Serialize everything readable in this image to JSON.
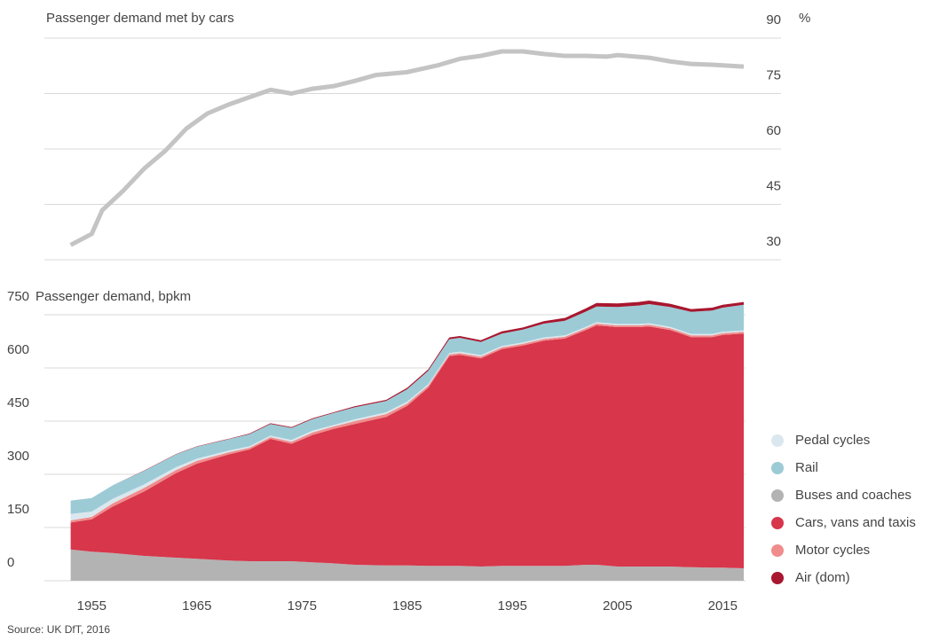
{
  "chart_data": [
    {
      "type": "line",
      "title": "Passenger demand met by cars",
      "y_unit": "%",
      "x": [
        1953,
        1955,
        1956,
        1958,
        1960,
        1962,
        1964,
        1966,
        1968,
        1970,
        1972,
        1974,
        1976,
        1978,
        1980,
        1982,
        1985,
        1988,
        1990,
        1992,
        1994,
        1996,
        1998,
        2000,
        2002,
        2004,
        2005,
        2008,
        2010,
        2012,
        2014,
        2017
      ],
      "series": [
        {
          "color": "#c4c4c4",
          "values": [
            34,
            37,
            43.4,
            48.7,
            54.7,
            59.5,
            65.5,
            69.6,
            72,
            74,
            76,
            75,
            76.3,
            77,
            78.4,
            80,
            80.8,
            82.7,
            84.4,
            85.2,
            86.4,
            86.4,
            85.7,
            85.2,
            85.2,
            85,
            85.4,
            84.7,
            83.7,
            83,
            82.8,
            82.3
          ]
        }
      ],
      "xlim": [
        1950.5,
        2017
      ],
      "ylim": [
        30,
        90
      ],
      "yticks": [
        30,
        45,
        60,
        75,
        90
      ],
      "grid": true
    },
    {
      "type": "stacked_area",
      "title": "Passenger demand, bpkm",
      "source": "Source: UK DfT, 2016",
      "x": [
        1953,
        1955,
        1957,
        1960,
        1963,
        1965,
        1968,
        1970,
        1972,
        1974,
        1976,
        1978,
        1980,
        1983,
        1985,
        1987,
        1989,
        1990,
        1992,
        1994,
        1996,
        1998,
        2000,
        2002,
        2003,
        2005,
        2007,
        2008,
        2010,
        2012,
        2014,
        2015,
        2017
      ],
      "series": [
        {
          "name": "Buses and coaches",
          "color": "#b3b3b3",
          "values": [
            88,
            82,
            78,
            70,
            65,
            62,
            57,
            55,
            55,
            55,
            52,
            49,
            45,
            43,
            43,
            42,
            42,
            42,
            40,
            42,
            42,
            42,
            42,
            45,
            45,
            40,
            40,
            40,
            40,
            38,
            37,
            37,
            35
          ]
        },
        {
          "name": "Cars, vans and taxis",
          "color": "#d7364b",
          "values": [
            76,
            91,
            131,
            182,
            238,
            268,
            299,
            315,
            345,
            331,
            359,
            379,
            397,
            419,
            450,
            502,
            591,
            595,
            587,
            611,
            621,
            635,
            641,
            662,
            675,
            675,
            675,
            677,
            667,
            649,
            650,
            656,
            662
          ]
        },
        {
          "name": "Motor cycles",
          "color": "#f08c8c",
          "values": [
            6,
            7,
            9,
            10,
            9,
            8,
            6,
            5,
            5,
            6,
            7,
            7,
            8,
            8,
            7,
            6,
            5,
            5,
            5,
            5,
            5,
            5,
            5,
            5,
            5,
            5,
            5,
            5,
            5,
            5,
            5,
            5,
            5
          ]
        },
        {
          "name": "Pedal cycles",
          "color": "#dbe7ee",
          "values": [
            18,
            15,
            13,
            10,
            8,
            6,
            5,
            4,
            4,
            5,
            5,
            4,
            5,
            5,
            5,
            4,
            4,
            4,
            4,
            4,
            4,
            4,
            4,
            4,
            4,
            4,
            4,
            4,
            4,
            4,
            4,
            4,
            4
          ]
        },
        {
          "name": "Rail",
          "color": "#9ccbd6",
          "values": [
            38,
            38,
            38,
            38,
            36,
            34,
            32,
            34,
            33,
            34,
            33,
            34,
            34,
            32,
            35,
            38,
            39,
            39,
            37,
            35,
            36,
            39,
            41,
            43,
            44,
            48,
            52,
            54,
            56,
            62,
            66,
            68,
            72
          ]
        },
        {
          "name": "Air (dom)",
          "color": "#a8172f",
          "values": [
            0,
            0,
            0,
            1,
            1,
            1,
            1,
            2,
            2,
            2,
            2,
            2,
            3,
            3,
            4,
            4,
            5,
            5,
            5,
            6,
            6,
            7,
            8,
            9,
            10,
            10,
            10,
            10,
            9,
            8,
            8,
            8,
            8
          ]
        }
      ],
      "legend_order": [
        3,
        4,
        0,
        1,
        2,
        5
      ],
      "xlim": [
        1950.5,
        2017
      ],
      "xticks": [
        1955,
        1965,
        1975,
        1985,
        1995,
        2005,
        2015
      ],
      "ylim": [
        0,
        800
      ],
      "yticks": [
        0,
        150,
        300,
        450,
        600,
        750
      ],
      "grid": true
    }
  ]
}
